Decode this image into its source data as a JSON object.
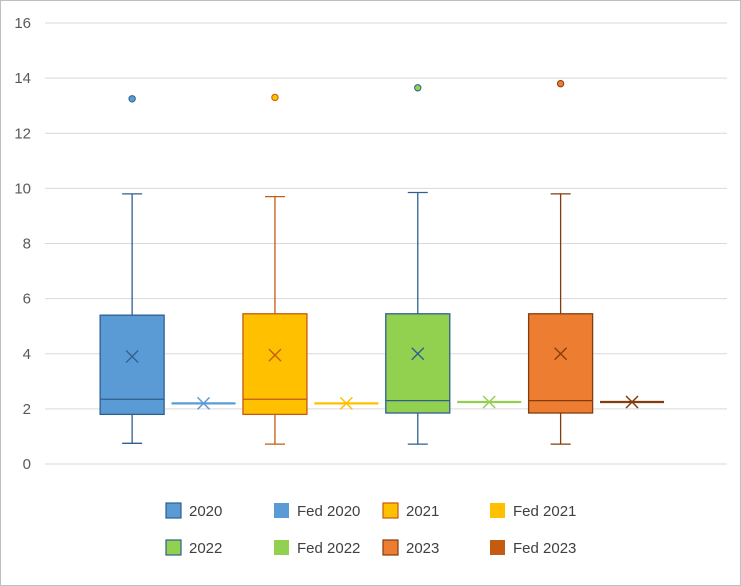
{
  "chart_data": {
    "type": "box",
    "title": "",
    "xlabel": "",
    "ylabel": "",
    "ylim": [
      0,
      16
    ],
    "yticks": [
      0,
      2,
      4,
      6,
      8,
      10,
      12,
      14,
      16
    ],
    "grid": true,
    "legend_position": "bottom",
    "series": [
      {
        "name": "2020",
        "kind": "box",
        "color": "#5b9bd5",
        "stroke": "#2e5f8f",
        "min": 0.75,
        "q1": 1.8,
        "median": 2.35,
        "q3": 5.4,
        "max": 9.8,
        "mean": 3.9,
        "outliers": [
          13.25
        ]
      },
      {
        "name": "Fed 2020",
        "kind": "flat",
        "color": "#5b9bd5",
        "stroke": "#5b9bd5",
        "value": 2.2
      },
      {
        "name": "2021",
        "kind": "box",
        "color": "#ffc000",
        "stroke": "#c55a11",
        "min": 0.72,
        "q1": 1.8,
        "median": 2.35,
        "q3": 5.45,
        "max": 9.7,
        "mean": 3.95,
        "outliers": [
          13.3
        ]
      },
      {
        "name": "Fed 2021",
        "kind": "flat",
        "color": "#ffc000",
        "stroke": "#ffc000",
        "value": 2.2
      },
      {
        "name": "2022",
        "kind": "box",
        "color": "#92d050",
        "stroke": "#2e5f8f",
        "min": 0.72,
        "q1": 1.85,
        "median": 2.3,
        "q3": 5.45,
        "max": 9.85,
        "mean": 4.0,
        "outliers": [
          13.65
        ]
      },
      {
        "name": "Fed 2022",
        "kind": "flat",
        "color": "#92d050",
        "stroke": "#92d050",
        "value": 2.25
      },
      {
        "name": "2023",
        "kind": "box",
        "color": "#ed7d31",
        "stroke": "#843c0c",
        "min": 0.72,
        "q1": 1.85,
        "median": 2.3,
        "q3": 5.45,
        "max": 9.8,
        "mean": 4.0,
        "outliers": [
          13.8
        ]
      },
      {
        "name": "Fed 2023",
        "kind": "flat",
        "color": "#c55a11",
        "stroke": "#843c0c",
        "value": 2.25
      }
    ]
  }
}
